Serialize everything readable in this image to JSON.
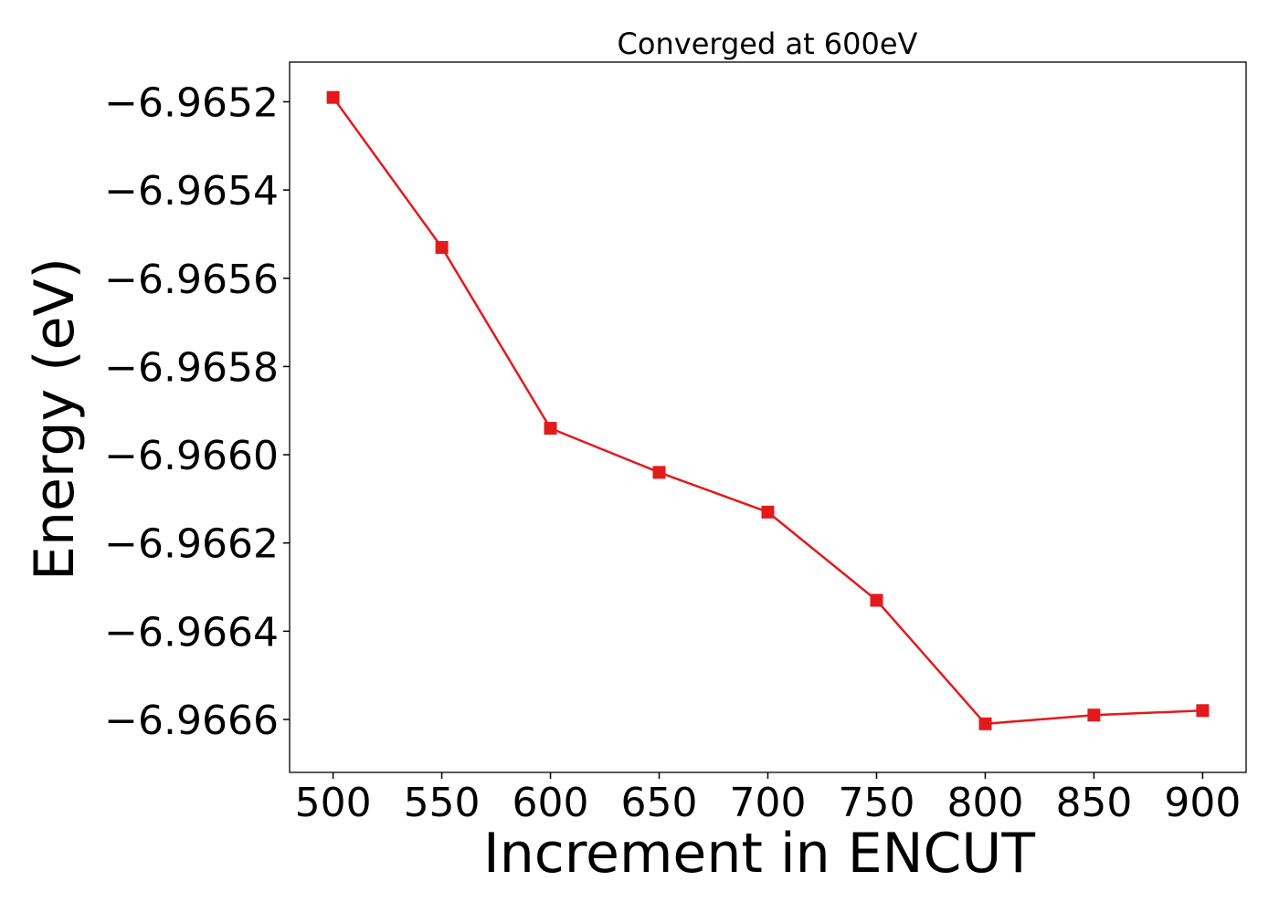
{
  "chart_data": {
    "type": "line",
    "title": "Converged at 600eV",
    "xlabel": "Increment in ENCUT",
    "ylabel": "Energy (eV)",
    "x": [
      500,
      550,
      600,
      650,
      700,
      750,
      800,
      850,
      900
    ],
    "series": [
      {
        "values": [
          -6.96519,
          -6.96553,
          -6.96594,
          -6.96604,
          -6.96613,
          -6.96633,
          -6.96661,
          -6.96659,
          -6.96658
        ],
        "color": "#e31a1c",
        "marker": "square"
      }
    ],
    "xticks": [
      500,
      550,
      600,
      650,
      700,
      750,
      800,
      850,
      900
    ],
    "xtick_labels": [
      "500",
      "550",
      "600",
      "650",
      "700",
      "750",
      "800",
      "850",
      "900"
    ],
    "yticks": [
      -6.9652,
      -6.9654,
      -6.9656,
      -6.9658,
      -6.966,
      -6.9662,
      -6.9664,
      -6.9666
    ],
    "ytick_labels": [
      "−6.9652",
      "−6.9654",
      "−6.9656",
      "−6.9658",
      "−6.9660",
      "−6.9662",
      "−6.9664",
      "−6.9666"
    ],
    "xlim": [
      480,
      920
    ],
    "ylim": [
      -6.96672,
      -6.96511
    ],
    "grid": false,
    "legend": "none"
  }
}
